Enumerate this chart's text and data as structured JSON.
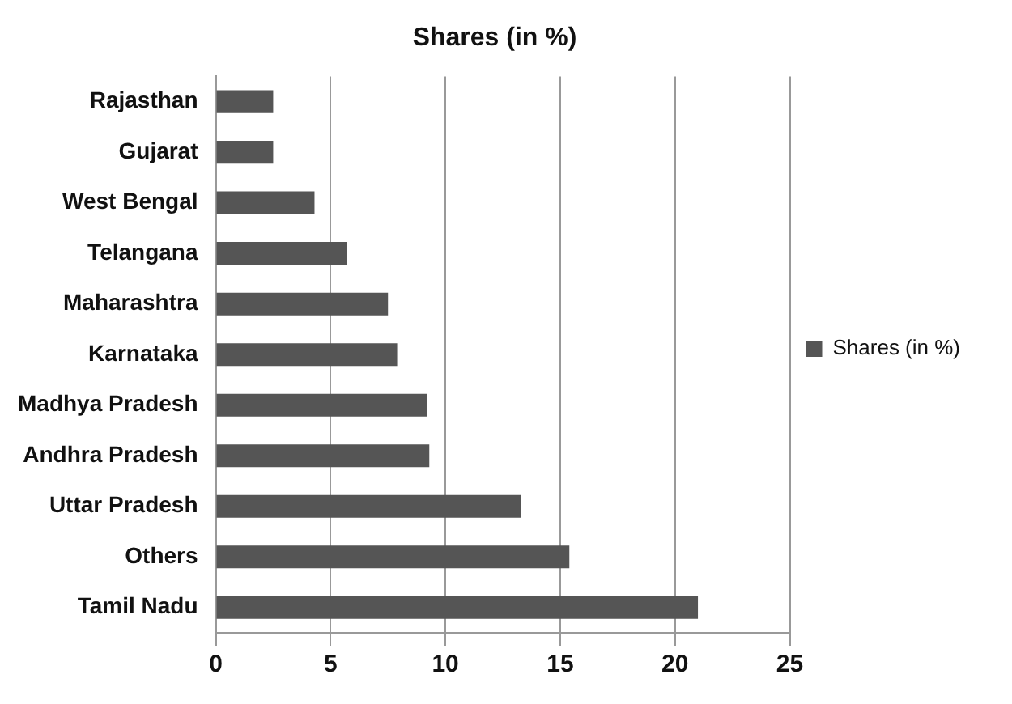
{
  "chart_data": {
    "type": "bar",
    "title": "Shares (in %)",
    "orientation": "horizontal",
    "categories": [
      "Rajasthan",
      "Gujarat",
      "West Bengal",
      "Telangana",
      "Maharashtra",
      "Karnataka",
      "Madhya Pradesh",
      "Andhra Pradesh",
      "Uttar Pradesh",
      "Others",
      "Tamil Nadu"
    ],
    "series": [
      {
        "name": "Shares (in %)",
        "color": "#555555",
        "values": [
          2.5,
          2.5,
          4.3,
          5.7,
          7.5,
          7.9,
          9.2,
          9.3,
          13.3,
          15.4,
          21.0
        ]
      }
    ],
    "xlim": [
      0,
      25
    ],
    "xticks": [
      0,
      5,
      10,
      15,
      20,
      25
    ],
    "grid": "x",
    "legend": "right"
  }
}
